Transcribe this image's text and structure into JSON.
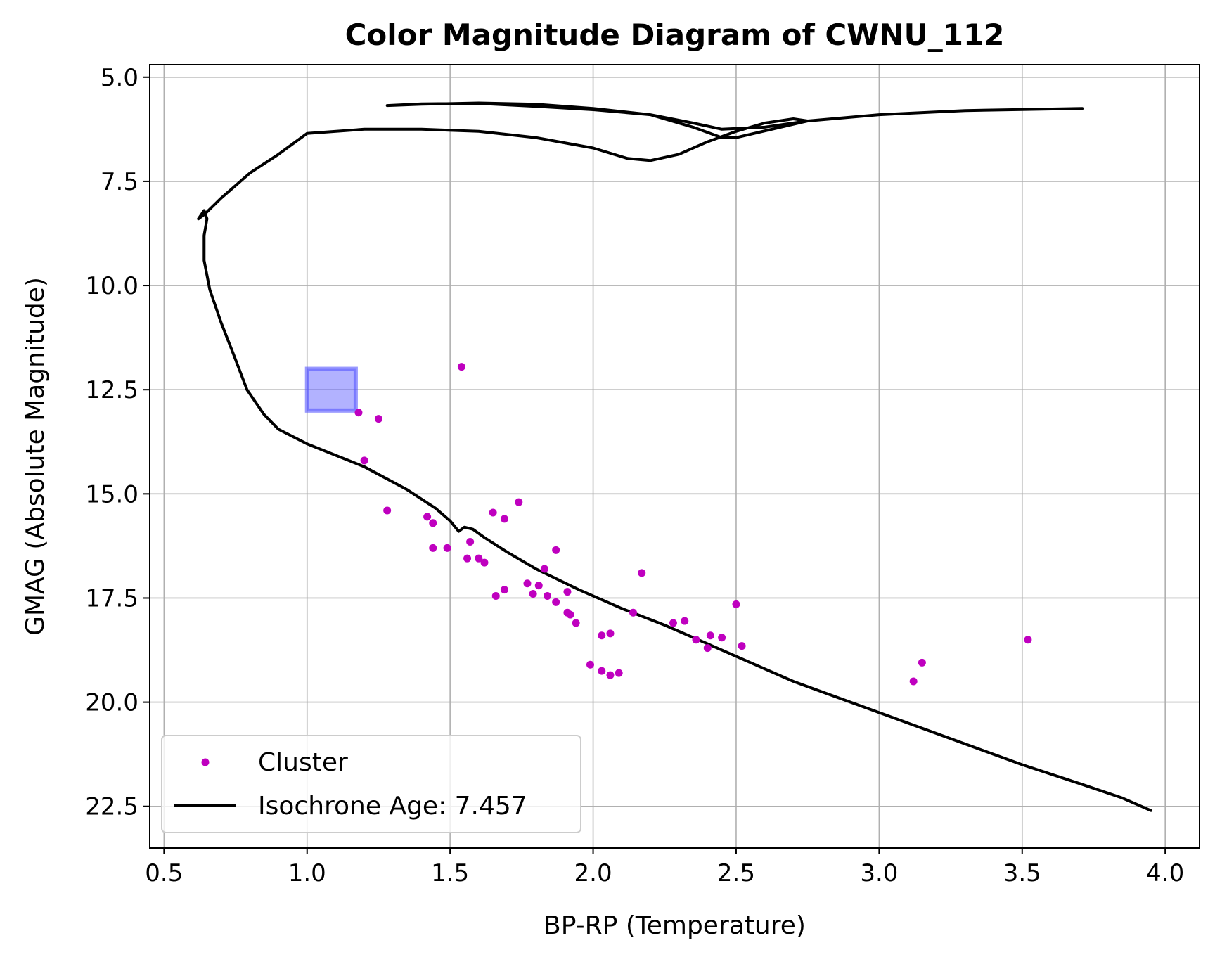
{
  "chart_data": {
    "type": "scatter",
    "title": "Color Magnitude Diagram of CWNU_112",
    "xlabel": "BP-RP (Temperature)",
    "ylabel": "GMAG (Absolute Magnitude)",
    "xlim": [
      0.45,
      4.12
    ],
    "ylim": [
      23.5,
      4.7
    ],
    "y_inverted": true,
    "grid": true,
    "legend_position": "lower-left",
    "x_ticks": [
      "0.5",
      "1.0",
      "1.5",
      "2.0",
      "2.5",
      "3.0",
      "3.5",
      "4.0"
    ],
    "y_ticks": [
      "5.0",
      "7.5",
      "10.0",
      "12.5",
      "15.0",
      "17.5",
      "20.0",
      "22.5"
    ],
    "highlight_box": {
      "x": [
        1.0,
        1.17
      ],
      "y": [
        12.0,
        13.0
      ],
      "color": "#5555ff"
    },
    "series": [
      {
        "name": "Cluster",
        "kind": "scatter",
        "color": "#bf00bf",
        "points": [
          [
            1.54,
            11.95
          ],
          [
            1.18,
            13.05
          ],
          [
            1.25,
            13.2
          ],
          [
            1.2,
            14.2
          ],
          [
            1.28,
            15.4
          ],
          [
            1.74,
            15.2
          ],
          [
            1.42,
            15.55
          ],
          [
            1.44,
            15.7
          ],
          [
            1.65,
            15.45
          ],
          [
            1.69,
            15.6
          ],
          [
            1.57,
            16.15
          ],
          [
            1.44,
            16.3
          ],
          [
            1.49,
            16.3
          ],
          [
            1.87,
            16.35
          ],
          [
            1.56,
            16.55
          ],
          [
            1.6,
            16.55
          ],
          [
            1.62,
            16.65
          ],
          [
            1.83,
            16.8
          ],
          [
            2.17,
            16.9
          ],
          [
            1.77,
            17.15
          ],
          [
            1.81,
            17.2
          ],
          [
            1.69,
            17.3
          ],
          [
            1.66,
            17.45
          ],
          [
            1.79,
            17.4
          ],
          [
            1.84,
            17.45
          ],
          [
            1.91,
            17.35
          ],
          [
            1.87,
            17.6
          ],
          [
            2.5,
            17.65
          ],
          [
            1.91,
            17.85
          ],
          [
            1.92,
            17.9
          ],
          [
            2.14,
            17.85
          ],
          [
            1.94,
            18.1
          ],
          [
            2.28,
            18.1
          ],
          [
            2.32,
            18.05
          ],
          [
            2.03,
            18.4
          ],
          [
            2.06,
            18.35
          ],
          [
            2.41,
            18.4
          ],
          [
            2.36,
            18.5
          ],
          [
            2.45,
            18.45
          ],
          [
            2.4,
            18.7
          ],
          [
            2.52,
            18.65
          ],
          [
            3.52,
            18.5
          ],
          [
            1.99,
            19.1
          ],
          [
            2.03,
            19.25
          ],
          [
            2.06,
            19.35
          ],
          [
            2.09,
            19.3
          ],
          [
            3.15,
            19.05
          ],
          [
            3.12,
            19.5
          ]
        ]
      },
      {
        "name": "Isochrone Age: 7.457",
        "kind": "line",
        "color": "#000000",
        "points": [
          [
            3.95,
            22.6
          ],
          [
            3.85,
            22.3
          ],
          [
            3.7,
            21.95
          ],
          [
            3.5,
            21.5
          ],
          [
            3.3,
            21.0
          ],
          [
            3.1,
            20.5
          ],
          [
            2.9,
            20.0
          ],
          [
            2.7,
            19.5
          ],
          [
            2.55,
            19.05
          ],
          [
            2.4,
            18.6
          ],
          [
            2.25,
            18.15
          ],
          [
            2.1,
            17.75
          ],
          [
            1.95,
            17.3
          ],
          [
            1.8,
            16.8
          ],
          [
            1.7,
            16.4
          ],
          [
            1.62,
            16.05
          ],
          [
            1.58,
            15.85
          ],
          [
            1.55,
            15.8
          ],
          [
            1.53,
            15.9
          ],
          [
            1.5,
            15.65
          ],
          [
            1.45,
            15.35
          ],
          [
            1.35,
            14.9
          ],
          [
            1.2,
            14.35
          ],
          [
            1.0,
            13.8
          ],
          [
            0.9,
            13.45
          ],
          [
            0.85,
            13.1
          ],
          [
            0.79,
            12.5
          ],
          [
            0.74,
            11.6
          ],
          [
            0.7,
            10.9
          ],
          [
            0.66,
            10.1
          ],
          [
            0.64,
            9.4
          ],
          [
            0.64,
            8.8
          ],
          [
            0.65,
            8.4
          ],
          [
            0.64,
            8.2
          ],
          [
            0.62,
            8.4
          ],
          [
            0.64,
            8.3
          ],
          [
            0.7,
            7.9
          ],
          [
            0.8,
            7.3
          ],
          [
            0.9,
            6.85
          ],
          [
            1.0,
            6.35
          ],
          [
            1.2,
            6.25
          ],
          [
            1.4,
            6.25
          ],
          [
            1.6,
            6.3
          ],
          [
            1.8,
            6.45
          ],
          [
            2.0,
            6.7
          ],
          [
            2.12,
            6.95
          ],
          [
            2.2,
            7.0
          ],
          [
            2.3,
            6.85
          ],
          [
            2.4,
            6.55
          ],
          [
            2.5,
            6.3
          ],
          [
            2.6,
            6.1
          ],
          [
            2.7,
            6.0
          ],
          [
            2.75,
            6.05
          ],
          [
            2.5,
            6.45
          ],
          [
            2.45,
            6.45
          ],
          [
            2.35,
            6.2
          ],
          [
            2.2,
            5.9
          ],
          [
            2.0,
            5.75
          ],
          [
            1.8,
            5.65
          ],
          [
            1.6,
            5.62
          ],
          [
            1.4,
            5.65
          ],
          [
            1.28,
            5.68
          ],
          [
            1.4,
            5.64
          ],
          [
            1.6,
            5.63
          ],
          [
            1.8,
            5.7
          ],
          [
            2.0,
            5.78
          ],
          [
            2.2,
            5.9
          ],
          [
            2.35,
            6.1
          ],
          [
            2.45,
            6.25
          ],
          [
            2.6,
            6.2
          ],
          [
            2.75,
            6.05
          ],
          [
            3.0,
            5.9
          ],
          [
            3.3,
            5.8
          ],
          [
            3.71,
            5.75
          ]
        ]
      }
    ]
  }
}
